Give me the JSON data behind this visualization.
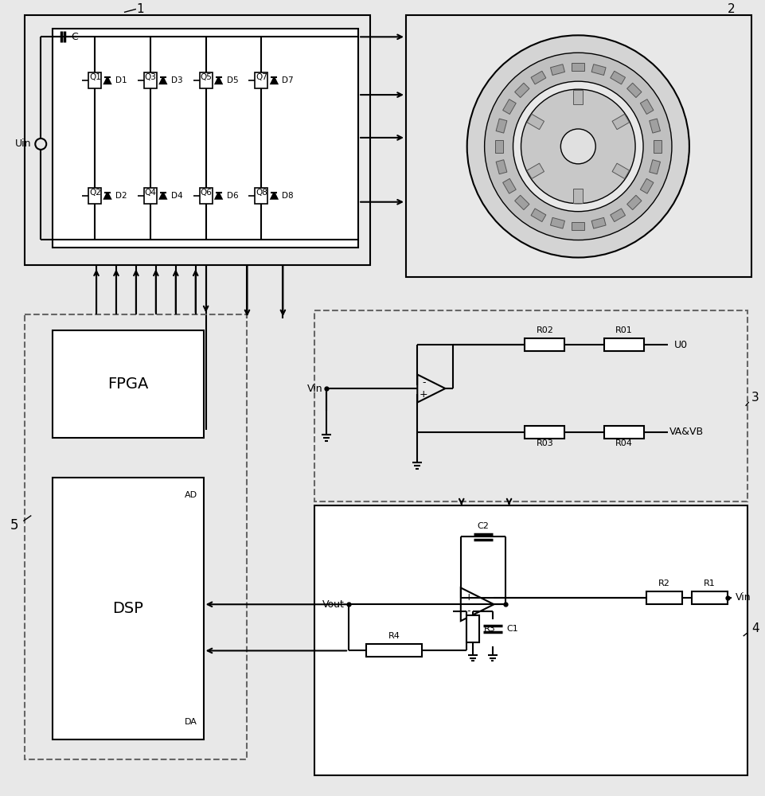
{
  "bg_color": "#e8e8e8",
  "white": "#ffffff",
  "black": "#000000",
  "gray_light": "#d8d8d8",
  "gray_motor": "#c8c8c8",
  "gray_mid": "#b0b0b0",
  "label1": "1",
  "label2": "2",
  "label3": "3",
  "label4": "4",
  "label5": "5",
  "uin_label": "Uin",
  "c_label": "C",
  "fpga_label": "FPGA",
  "dsp_label": "DSP",
  "ad_label": "AD",
  "da_label": "DA",
  "vin_label": "Vin",
  "vout_label": "Vout",
  "u0_label": "U0",
  "vavb_label": "VA&VB",
  "transistors_top": [
    "Q1",
    "Q3",
    "Q5",
    "Q7"
  ],
  "transistors_bot": [
    "Q2",
    "Q4",
    "Q6",
    "Q8"
  ],
  "diodes_top": [
    "D1",
    "D3",
    "D5",
    "D7"
  ],
  "diodes_bot": [
    "D2",
    "D4",
    "D6",
    "D8"
  ]
}
